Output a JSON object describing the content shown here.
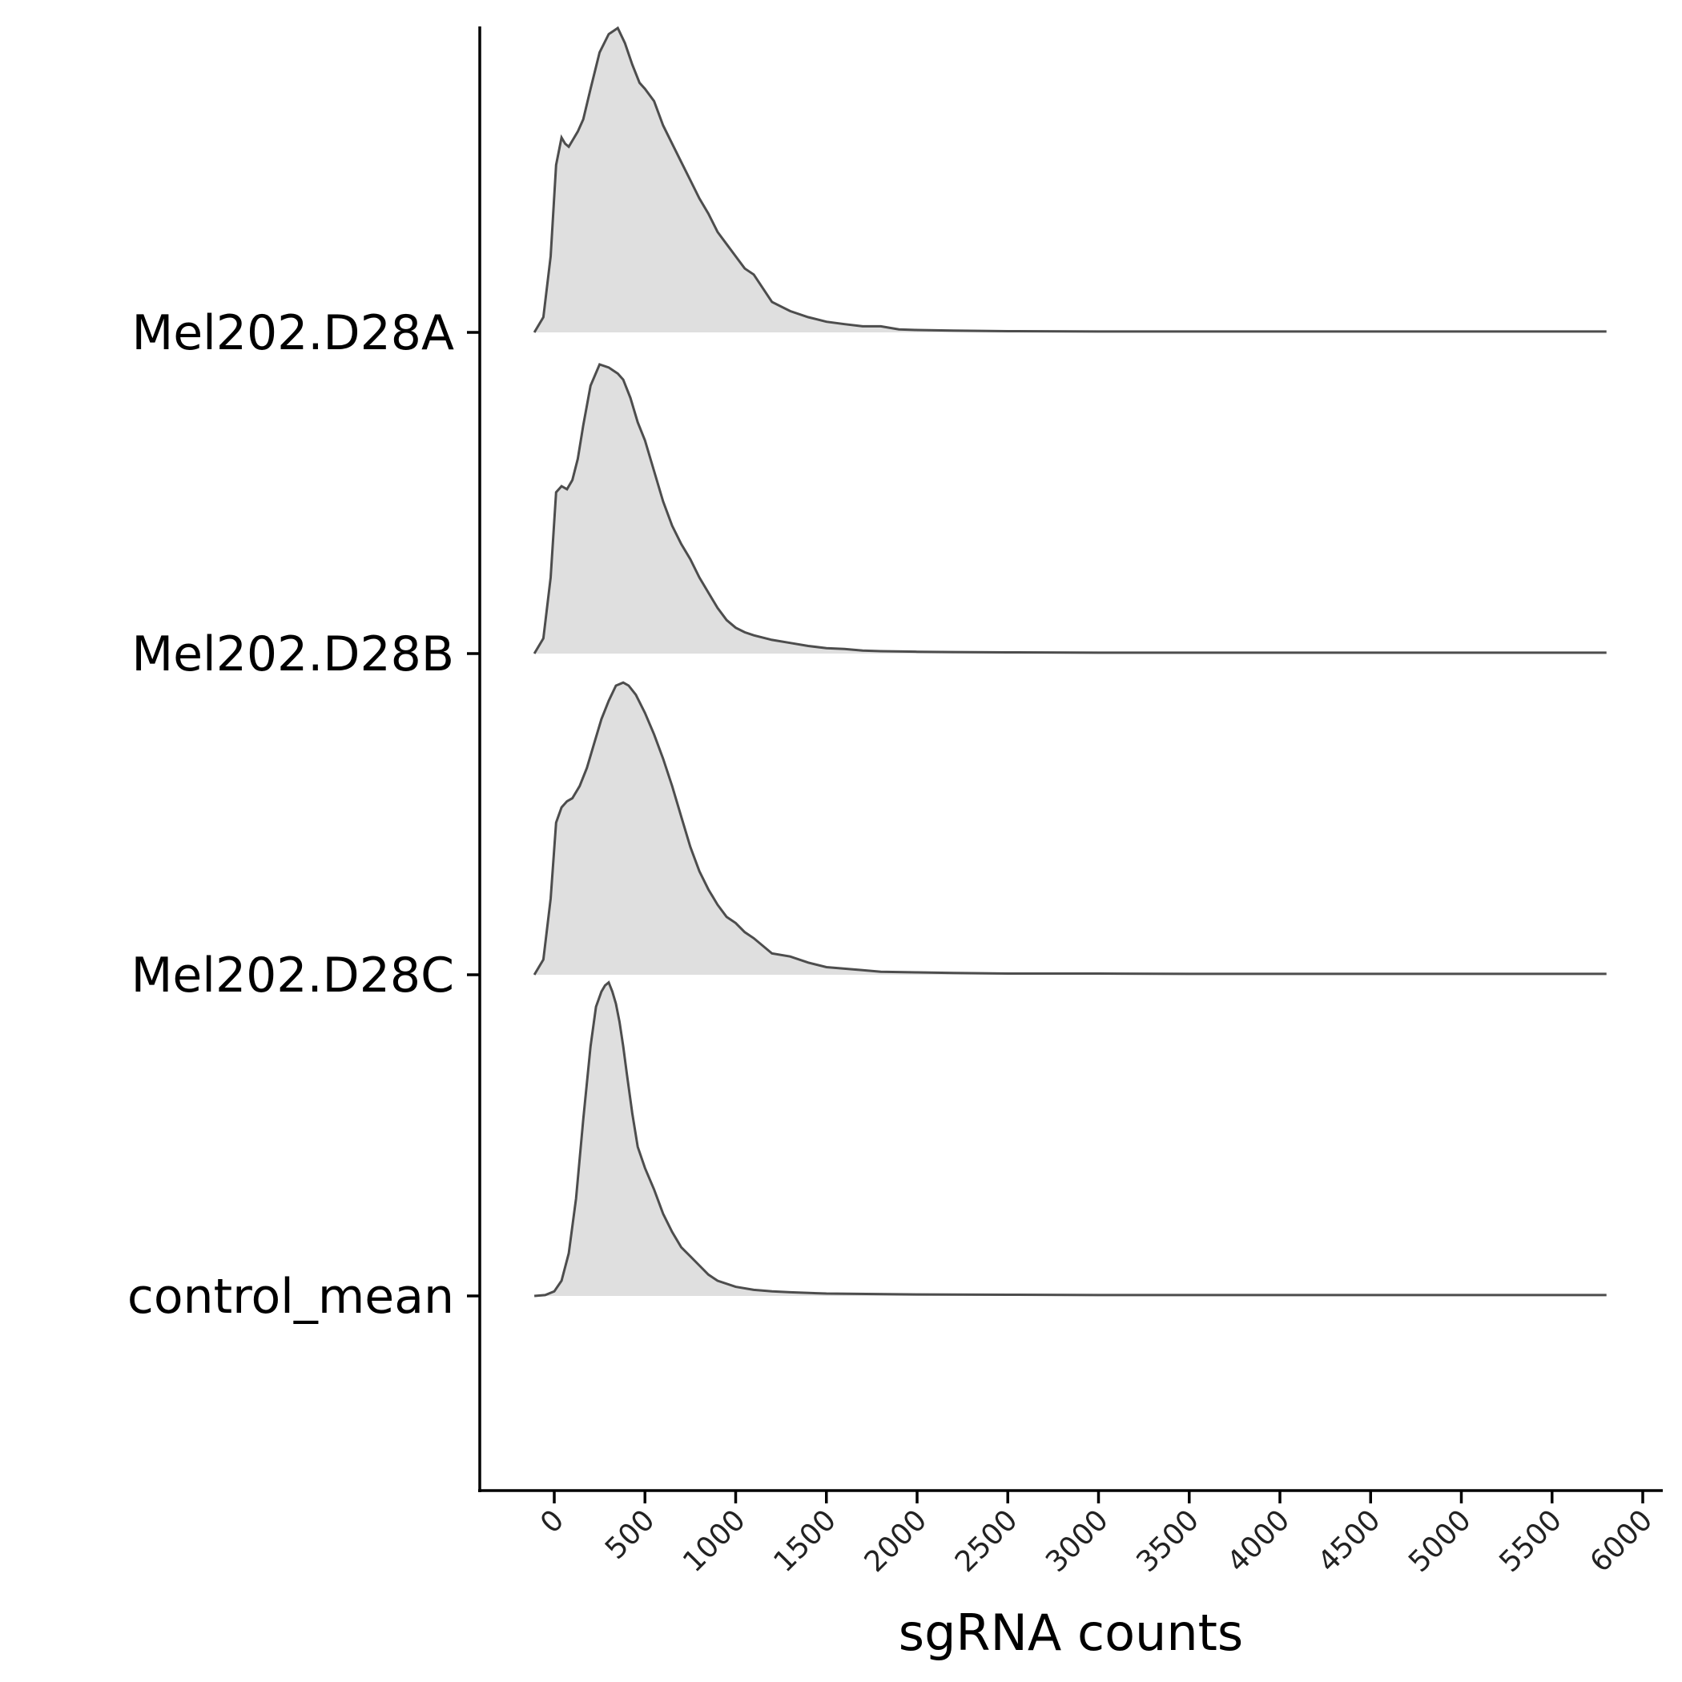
{
  "chart_data": {
    "type": "area",
    "subtype": "ridgeline-density",
    "xlabel": "sgRNA counts",
    "ylabel": "",
    "xlim": [
      -400,
      6100
    ],
    "x_ticks": [
      0,
      500,
      1000,
      1500,
      2000,
      2500,
      3000,
      3500,
      4000,
      4500,
      5000,
      5500,
      6000
    ],
    "x_tick_labels": [
      "0",
      "500",
      "1000",
      "1500",
      "2000",
      "2500",
      "3000",
      "3500",
      "4000",
      "4500",
      "5000",
      "5500",
      "6000"
    ],
    "categories": [
      "Mel202.D28A",
      "Mel202.D28B",
      "Mel202.D28C",
      "control_mean"
    ],
    "grid": false,
    "fill_color": "#d9d9d9",
    "line_color": "#4d4d4d",
    "series": [
      {
        "name": "Mel202.D28A",
        "x": [
          -110,
          -60,
          -20,
          10,
          40,
          60,
          80,
          100,
          130,
          160,
          200,
          250,
          300,
          350,
          390,
          430,
          470,
          500,
          550,
          600,
          650,
          700,
          750,
          800,
          850,
          900,
          950,
          1000,
          1050,
          1100,
          1200,
          1300,
          1400,
          1500,
          1600,
          1700,
          1800,
          1900,
          2000,
          2200,
          2500,
          3000,
          3500,
          4000,
          4500,
          5000,
          5500,
          5800
        ],
        "y": [
          0.0,
          0.05,
          0.25,
          0.55,
          0.64,
          0.62,
          0.61,
          0.63,
          0.66,
          0.7,
          0.8,
          0.92,
          0.98,
          1.0,
          0.95,
          0.88,
          0.82,
          0.8,
          0.76,
          0.68,
          0.62,
          0.56,
          0.5,
          0.44,
          0.39,
          0.33,
          0.29,
          0.25,
          0.21,
          0.19,
          0.1,
          0.07,
          0.05,
          0.035,
          0.027,
          0.02,
          0.02,
          0.01,
          0.008,
          0.006,
          0.004,
          0.003,
          0.003,
          0.003,
          0.003,
          0.003,
          0.003,
          0.003
        ]
      },
      {
        "name": "Mel202.D28B",
        "x": [
          -110,
          -60,
          -20,
          10,
          40,
          70,
          100,
          130,
          160,
          200,
          250,
          300,
          350,
          380,
          420,
          460,
          500,
          550,
          600,
          650,
          700,
          750,
          800,
          850,
          900,
          950,
          1000,
          1050,
          1100,
          1200,
          1300,
          1400,
          1500,
          1600,
          1700,
          1800,
          2000,
          2200,
          2500,
          3000,
          3500,
          4000,
          4500,
          5000,
          5500,
          5800
        ],
        "y": [
          0.0,
          0.05,
          0.25,
          0.53,
          0.55,
          0.54,
          0.57,
          0.64,
          0.75,
          0.88,
          0.95,
          0.94,
          0.92,
          0.9,
          0.84,
          0.76,
          0.7,
          0.6,
          0.5,
          0.42,
          0.36,
          0.31,
          0.25,
          0.2,
          0.15,
          0.11,
          0.085,
          0.07,
          0.06,
          0.045,
          0.035,
          0.025,
          0.018,
          0.015,
          0.01,
          0.008,
          0.006,
          0.005,
          0.004,
          0.003,
          0.003,
          0.003,
          0.003,
          0.003,
          0.003,
          0.003
        ]
      },
      {
        "name": "Mel202.D28C",
        "x": [
          -110,
          -60,
          -20,
          10,
          40,
          70,
          100,
          140,
          180,
          220,
          260,
          300,
          340,
          380,
          410,
          450,
          500,
          550,
          600,
          650,
          700,
          750,
          800,
          850,
          900,
          950,
          1000,
          1050,
          1100,
          1200,
          1300,
          1400,
          1500,
          1600,
          1700,
          1800,
          2000,
          2200,
          2500,
          3000,
          3500,
          4000,
          4500,
          5000,
          5500,
          5800
        ],
        "y": [
          0.0,
          0.05,
          0.25,
          0.5,
          0.55,
          0.57,
          0.58,
          0.62,
          0.68,
          0.76,
          0.84,
          0.9,
          0.95,
          0.96,
          0.95,
          0.92,
          0.86,
          0.79,
          0.71,
          0.62,
          0.52,
          0.42,
          0.34,
          0.28,
          0.23,
          0.19,
          0.17,
          0.14,
          0.12,
          0.07,
          0.06,
          0.04,
          0.025,
          0.02,
          0.015,
          0.01,
          0.008,
          0.006,
          0.004,
          0.004,
          0.003,
          0.003,
          0.003,
          0.003,
          0.003,
          0.003
        ]
      },
      {
        "name": "control_mean",
        "x": [
          -110,
          -50,
          0,
          40,
          80,
          120,
          160,
          200,
          230,
          260,
          280,
          300,
          320,
          340,
          360,
          380,
          400,
          430,
          460,
          500,
          550,
          600,
          650,
          700,
          750,
          800,
          850,
          900,
          1000,
          1100,
          1200,
          1300,
          1500,
          2000,
          2500,
          3000,
          4000,
          5000,
          5800
        ],
        "y": [
          0.0,
          0.003,
          0.015,
          0.05,
          0.14,
          0.32,
          0.58,
          0.82,
          0.95,
          1.0,
          1.02,
          1.03,
          1.0,
          0.96,
          0.9,
          0.82,
          0.73,
          0.6,
          0.49,
          0.42,
          0.35,
          0.27,
          0.21,
          0.16,
          0.13,
          0.1,
          0.07,
          0.05,
          0.03,
          0.02,
          0.015,
          0.012,
          0.008,
          0.005,
          0.004,
          0.003,
          0.003,
          0.003,
          0.003
        ]
      }
    ]
  }
}
